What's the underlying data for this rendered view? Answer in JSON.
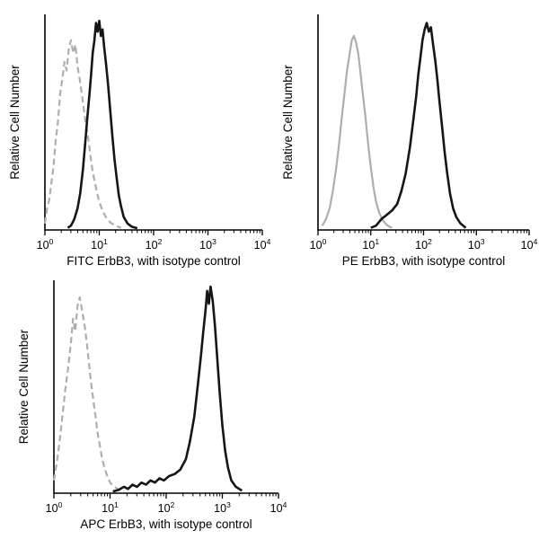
{
  "figure": {
    "background": "#ffffff",
    "description": "Flow cytometry overlay histograms of ErbB3 staining vs isotype control in three fluorescence channels"
  },
  "colors": {
    "axis": "#000000",
    "sample_curve": "#161616",
    "isotype_curve": "#aeaeae"
  },
  "chart_data": [
    {
      "type": "line",
      "subtype": "flow-cytometry-histogram",
      "title": "",
      "xlabel": "FITC  ErbB3,  with isotype control",
      "ylabel": "Relative Cell Number",
      "xscale": "log10",
      "xlim_exponents": [
        0,
        4
      ],
      "xticks_exponents": [
        0,
        1,
        2,
        3,
        4
      ],
      "ylim": [
        0,
        1
      ],
      "grid": false,
      "legend": "none",
      "series": [
        {
          "name": "isotype control",
          "color": "#aeaeae",
          "dash": "7 4",
          "width": 2.2,
          "peak_x_log10": 0.5,
          "points": [
            [
              0.0,
              0.03
            ],
            [
              0.04,
              0.1
            ],
            [
              0.08,
              0.14
            ],
            [
              0.12,
              0.22
            ],
            [
              0.16,
              0.3
            ],
            [
              0.2,
              0.42
            ],
            [
              0.24,
              0.5
            ],
            [
              0.28,
              0.63
            ],
            [
              0.32,
              0.7
            ],
            [
              0.36,
              0.78
            ],
            [
              0.4,
              0.74
            ],
            [
              0.44,
              0.84
            ],
            [
              0.48,
              0.88
            ],
            [
              0.52,
              0.82
            ],
            [
              0.56,
              0.86
            ],
            [
              0.6,
              0.76
            ],
            [
              0.64,
              0.7
            ],
            [
              0.68,
              0.63
            ],
            [
              0.72,
              0.55
            ],
            [
              0.76,
              0.48
            ],
            [
              0.8,
              0.42
            ],
            [
              0.84,
              0.34
            ],
            [
              0.88,
              0.27
            ],
            [
              0.92,
              0.22
            ],
            [
              0.96,
              0.17
            ],
            [
              1.0,
              0.13
            ],
            [
              1.06,
              0.09
            ],
            [
              1.12,
              0.06
            ],
            [
              1.2,
              0.035
            ],
            [
              1.3,
              0.02
            ],
            [
              1.4,
              0.01
            ]
          ]
        },
        {
          "name": "ErbB3 FITC",
          "color": "#161616",
          "dash": "",
          "width": 2.6,
          "peak_x_log10": 1.0,
          "points": [
            [
              0.42,
              0.01
            ],
            [
              0.48,
              0.02
            ],
            [
              0.54,
              0.05
            ],
            [
              0.6,
              0.1
            ],
            [
              0.65,
              0.17
            ],
            [
              0.7,
              0.28
            ],
            [
              0.74,
              0.4
            ],
            [
              0.78,
              0.52
            ],
            [
              0.82,
              0.63
            ],
            [
              0.85,
              0.72
            ],
            [
              0.88,
              0.82
            ],
            [
              0.91,
              0.88
            ],
            [
              0.94,
              0.96
            ],
            [
              0.97,
              0.92
            ],
            [
              1.0,
              0.97
            ],
            [
              1.03,
              0.9
            ],
            [
              1.06,
              0.93
            ],
            [
              1.09,
              0.85
            ],
            [
              1.12,
              0.78
            ],
            [
              1.16,
              0.68
            ],
            [
              1.2,
              0.56
            ],
            [
              1.24,
              0.44
            ],
            [
              1.28,
              0.33
            ],
            [
              1.32,
              0.24
            ],
            [
              1.36,
              0.16
            ],
            [
              1.4,
              0.11
            ],
            [
              1.45,
              0.06
            ],
            [
              1.52,
              0.03
            ],
            [
              1.6,
              0.015
            ],
            [
              1.7,
              0.008
            ]
          ]
        }
      ]
    },
    {
      "type": "line",
      "subtype": "flow-cytometry-histogram",
      "title": "",
      "xlabel": "PE  ErbB3,  with isotype control",
      "ylabel": "Relative Cell Number",
      "xscale": "log10",
      "xlim_exponents": [
        0,
        4
      ],
      "xticks_exponents": [
        0,
        1,
        2,
        3,
        4
      ],
      "ylim": [
        0,
        1
      ],
      "grid": false,
      "legend": "none",
      "series": [
        {
          "name": "isotype control",
          "color": "#aeaeae",
          "dash": "",
          "width": 2.2,
          "peak_x_log10": 0.68,
          "points": [
            [
              0.08,
              0.02
            ],
            [
              0.15,
              0.05
            ],
            [
              0.22,
              0.1
            ],
            [
              0.28,
              0.18
            ],
            [
              0.34,
              0.28
            ],
            [
              0.4,
              0.4
            ],
            [
              0.45,
              0.52
            ],
            [
              0.5,
              0.63
            ],
            [
              0.55,
              0.74
            ],
            [
              0.6,
              0.82
            ],
            [
              0.64,
              0.88
            ],
            [
              0.68,
              0.9
            ],
            [
              0.72,
              0.87
            ],
            [
              0.76,
              0.82
            ],
            [
              0.8,
              0.74
            ],
            [
              0.85,
              0.63
            ],
            [
              0.9,
              0.52
            ],
            [
              0.95,
              0.4
            ],
            [
              1.0,
              0.29
            ],
            [
              1.05,
              0.2
            ],
            [
              1.1,
              0.13
            ],
            [
              1.16,
              0.08
            ],
            [
              1.24,
              0.04
            ],
            [
              1.32,
              0.02
            ],
            [
              1.4,
              0.01
            ]
          ]
        },
        {
          "name": "ErbB3 PE",
          "color": "#161616",
          "dash": "",
          "width": 2.6,
          "peak_x_log10": 2.06,
          "points": [
            [
              1.0,
              0.01
            ],
            [
              1.1,
              0.02
            ],
            [
              1.2,
              0.05
            ],
            [
              1.3,
              0.07
            ],
            [
              1.4,
              0.09
            ],
            [
              1.5,
              0.12
            ],
            [
              1.58,
              0.18
            ],
            [
              1.66,
              0.26
            ],
            [
              1.74,
              0.38
            ],
            [
              1.8,
              0.5
            ],
            [
              1.86,
              0.62
            ],
            [
              1.9,
              0.72
            ],
            [
              1.94,
              0.8
            ],
            [
              1.98,
              0.88
            ],
            [
              2.02,
              0.93
            ],
            [
              2.06,
              0.96
            ],
            [
              2.1,
              0.92
            ],
            [
              2.14,
              0.94
            ],
            [
              2.18,
              0.86
            ],
            [
              2.22,
              0.79
            ],
            [
              2.26,
              0.7
            ],
            [
              2.3,
              0.6
            ],
            [
              2.35,
              0.48
            ],
            [
              2.4,
              0.36
            ],
            [
              2.45,
              0.26
            ],
            [
              2.5,
              0.17
            ],
            [
              2.56,
              0.1
            ],
            [
              2.62,
              0.06
            ],
            [
              2.7,
              0.03
            ],
            [
              2.8,
              0.01
            ]
          ]
        }
      ]
    },
    {
      "type": "line",
      "subtype": "flow-cytometry-histogram",
      "title": "",
      "xlabel": "APC ErbB3, with isotype control",
      "ylabel": "Relative Cell Number",
      "xscale": "log10",
      "xlim_exponents": [
        0,
        4
      ],
      "xticks_exponents": [
        0,
        1,
        2,
        3,
        4
      ],
      "ylim": [
        0,
        1
      ],
      "grid": false,
      "legend": "none",
      "series": [
        {
          "name": "isotype control",
          "color": "#aeaeae",
          "dash": "7 4",
          "width": 2.2,
          "peak_x_log10": 0.46,
          "points": [
            [
              0.0,
              0.06
            ],
            [
              0.05,
              0.14
            ],
            [
              0.1,
              0.24
            ],
            [
              0.15,
              0.36
            ],
            [
              0.2,
              0.48
            ],
            [
              0.25,
              0.58
            ],
            [
              0.3,
              0.7
            ],
            [
              0.34,
              0.82
            ],
            [
              0.38,
              0.76
            ],
            [
              0.42,
              0.88
            ],
            [
              0.46,
              0.92
            ],
            [
              0.5,
              0.86
            ],
            [
              0.54,
              0.8
            ],
            [
              0.58,
              0.72
            ],
            [
              0.62,
              0.62
            ],
            [
              0.66,
              0.52
            ],
            [
              0.7,
              0.44
            ],
            [
              0.74,
              0.36
            ],
            [
              0.78,
              0.28
            ],
            [
              0.82,
              0.22
            ],
            [
              0.86,
              0.16
            ],
            [
              0.9,
              0.12
            ],
            [
              0.95,
              0.08
            ],
            [
              1.0,
              0.05
            ],
            [
              1.08,
              0.03
            ],
            [
              1.16,
              0.015
            ],
            [
              1.25,
              0.008
            ]
          ]
        },
        {
          "name": "ErbB3 APC",
          "color": "#161616",
          "dash": "",
          "width": 2.6,
          "peak_x_log10": 2.79,
          "points": [
            [
              1.05,
              0.008
            ],
            [
              1.15,
              0.015
            ],
            [
              1.25,
              0.03
            ],
            [
              1.32,
              0.02
            ],
            [
              1.4,
              0.04
            ],
            [
              1.48,
              0.03
            ],
            [
              1.56,
              0.05
            ],
            [
              1.64,
              0.04
            ],
            [
              1.72,
              0.06
            ],
            [
              1.8,
              0.05
            ],
            [
              1.88,
              0.07
            ],
            [
              1.96,
              0.06
            ],
            [
              2.05,
              0.08
            ],
            [
              2.15,
              0.09
            ],
            [
              2.25,
              0.11
            ],
            [
              2.35,
              0.16
            ],
            [
              2.42,
              0.24
            ],
            [
              2.5,
              0.36
            ],
            [
              2.56,
              0.5
            ],
            [
              2.62,
              0.65
            ],
            [
              2.66,
              0.76
            ],
            [
              2.7,
              0.86
            ],
            [
              2.73,
              0.95
            ],
            [
              2.76,
              0.89
            ],
            [
              2.79,
              0.97
            ],
            [
              2.83,
              0.9
            ],
            [
              2.87,
              0.78
            ],
            [
              2.91,
              0.63
            ],
            [
              2.95,
              0.48
            ],
            [
              3.0,
              0.32
            ],
            [
              3.05,
              0.2
            ],
            [
              3.1,
              0.12
            ],
            [
              3.16,
              0.06
            ],
            [
              3.24,
              0.03
            ],
            [
              3.35,
              0.012
            ]
          ]
        }
      ]
    }
  ]
}
